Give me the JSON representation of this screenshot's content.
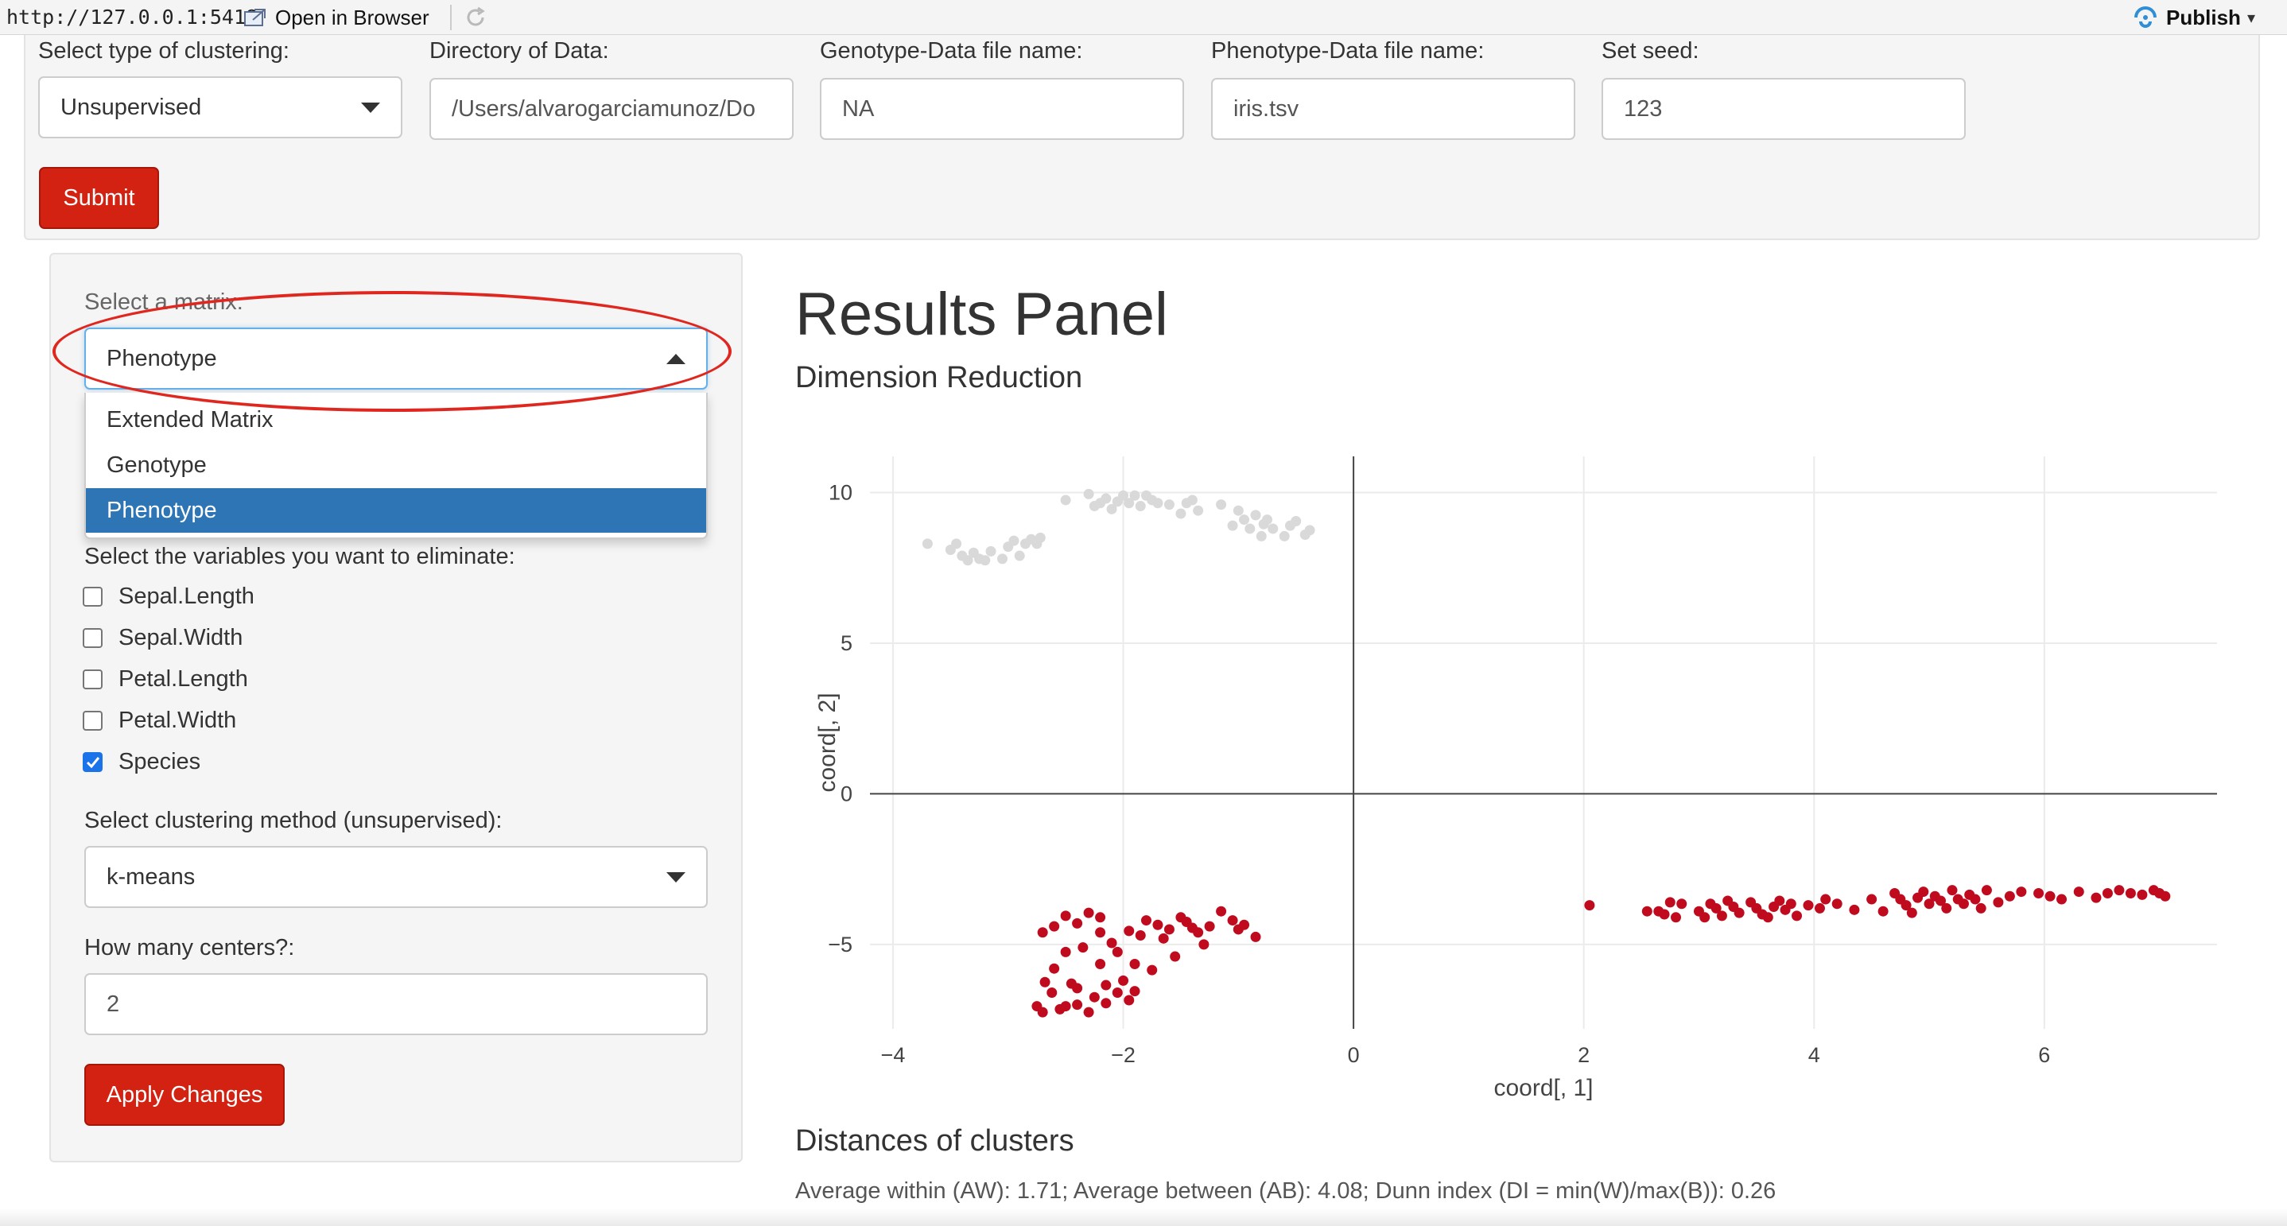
{
  "browser": {
    "url": "http://127.0.0.1:5418",
    "open_in_browser": "Open in Browser",
    "publish": "Publish"
  },
  "top_panel": {
    "clustering_type": {
      "label": "Select type of clustering:",
      "value": "Unsupervised"
    },
    "directory": {
      "label": "Directory of Data:",
      "value": "/Users/alvarogarciamunoz/Do"
    },
    "genotype_file": {
      "label": "Genotype-Data file name:",
      "value": "NA"
    },
    "phenotype_file": {
      "label": "Phenotype-Data file name:",
      "value": "iris.tsv"
    },
    "seed": {
      "label": "Set seed:",
      "value": "123"
    },
    "submit_label": "Submit"
  },
  "sidebar": {
    "matrix_label": "Select a matrix:",
    "matrix_value": "Phenotype",
    "matrix_options": [
      {
        "label": "Extended Matrix",
        "selected": false
      },
      {
        "label": "Genotype",
        "selected": false
      },
      {
        "label": "Phenotype",
        "selected": true
      }
    ],
    "eliminate_label": "Select the variables you want to eliminate:",
    "variables": [
      {
        "label": "Sepal.Length",
        "checked": false
      },
      {
        "label": "Sepal.Width",
        "checked": false
      },
      {
        "label": "Petal.Length",
        "checked": false
      },
      {
        "label": "Petal.Width",
        "checked": false
      },
      {
        "label": "Species",
        "checked": true
      }
    ],
    "method_label": "Select clustering method (unsupervised):",
    "method_value": "k-means",
    "centers_label": "How many centers?:",
    "centers_value": "2",
    "apply_label": "Apply Changes"
  },
  "results": {
    "title": "Results Panel",
    "dimension_reduction": "Dimension Reduction",
    "distances_title": "Distances of clusters",
    "distances_text": "Average within (AW): 1.71; Average between (AB): 4.08; Dunn index (DI = min(W)/max(B)): 0.26"
  },
  "colors": {
    "accent_red": "#d32211",
    "cluster_red": "#c00a1e",
    "cluster_gray": "#d9d9d9",
    "selected_blue": "#2e75b6",
    "annotation_red": "#e0271f"
  },
  "chart_data": {
    "type": "scatter",
    "title": "",
    "xlabel": "coord[, 1]",
    "ylabel": "coord[, 2]",
    "xlim": [
      -4.2,
      7.5
    ],
    "ylim": [
      -7.8,
      11.2
    ],
    "x_ticks": [
      -4,
      -2,
      0,
      2,
      4,
      6
    ],
    "y_ticks": [
      -5,
      0,
      5,
      10
    ],
    "x_tick_labels": [
      "−4",
      "−2",
      "0",
      "2",
      "4",
      "6"
    ],
    "y_tick_labels": [
      "−5",
      "0",
      "5",
      "10"
    ],
    "grid": true,
    "zero_lines": true,
    "series": [
      {
        "color": "#d9d9d9",
        "points": [
          [
            -3.7,
            8.3
          ],
          [
            -3.5,
            8.1
          ],
          [
            -3.45,
            8.3
          ],
          [
            -3.4,
            7.9
          ],
          [
            -3.35,
            7.75
          ],
          [
            -3.3,
            8.0
          ],
          [
            -3.25,
            7.8
          ],
          [
            -3.2,
            7.75
          ],
          [
            -3.15,
            8.05
          ],
          [
            -3.05,
            7.8
          ],
          [
            -3.0,
            8.2
          ],
          [
            -2.95,
            8.4
          ],
          [
            -2.9,
            7.9
          ],
          [
            -2.85,
            8.3
          ],
          [
            -2.8,
            8.45
          ],
          [
            -2.75,
            8.3
          ],
          [
            -2.72,
            8.5
          ],
          [
            -2.5,
            9.75
          ],
          [
            -2.3,
            9.95
          ],
          [
            -2.25,
            9.55
          ],
          [
            -2.2,
            9.65
          ],
          [
            -2.15,
            9.8
          ],
          [
            -2.1,
            9.45
          ],
          [
            -2.05,
            9.7
          ],
          [
            -2.0,
            9.9
          ],
          [
            -1.95,
            9.65
          ],
          [
            -1.9,
            9.9
          ],
          [
            -1.85,
            9.55
          ],
          [
            -1.8,
            9.9
          ],
          [
            -1.75,
            9.75
          ],
          [
            -1.7,
            9.65
          ],
          [
            -1.6,
            9.6
          ],
          [
            -1.5,
            9.3
          ],
          [
            -1.45,
            9.65
          ],
          [
            -1.4,
            9.75
          ],
          [
            -1.35,
            9.4
          ],
          [
            -1.15,
            9.6
          ],
          [
            -1.05,
            8.9
          ],
          [
            -1.0,
            9.4
          ],
          [
            -0.95,
            9.1
          ],
          [
            -0.9,
            8.8
          ],
          [
            -0.85,
            9.25
          ],
          [
            -0.8,
            8.55
          ],
          [
            -0.78,
            8.95
          ],
          [
            -0.75,
            9.1
          ],
          [
            -0.7,
            8.8
          ],
          [
            -0.6,
            8.55
          ],
          [
            -0.55,
            8.9
          ],
          [
            -0.5,
            9.05
          ],
          [
            -0.42,
            8.6
          ],
          [
            -0.38,
            8.75
          ]
        ]
      },
      {
        "color": "#c00a1e",
        "points": [
          [
            -2.75,
            -7.05
          ],
          [
            -2.7,
            -7.25
          ],
          [
            -2.68,
            -6.25
          ],
          [
            -2.62,
            -6.6
          ],
          [
            -2.6,
            -5.8
          ],
          [
            -2.55,
            -7.15
          ],
          [
            -2.5,
            -5.25
          ],
          [
            -2.5,
            -7.05
          ],
          [
            -2.45,
            -6.3
          ],
          [
            -2.4,
            -6.45
          ],
          [
            -2.4,
            -7.0
          ],
          [
            -2.35,
            -5.1
          ],
          [
            -2.3,
            -7.25
          ],
          [
            -2.25,
            -6.75
          ],
          [
            -2.2,
            -4.6
          ],
          [
            -2.2,
            -5.65
          ],
          [
            -2.15,
            -6.35
          ],
          [
            -2.15,
            -6.95
          ],
          [
            -2.1,
            -4.95
          ],
          [
            -2.05,
            -5.25
          ],
          [
            -2.05,
            -6.6
          ],
          [
            -2.0,
            -6.2
          ],
          [
            -1.95,
            -4.55
          ],
          [
            -1.95,
            -6.85
          ],
          [
            -1.9,
            -5.65
          ],
          [
            -1.85,
            -4.7
          ],
          [
            -1.9,
            -6.55
          ],
          [
            -1.8,
            -4.2
          ],
          [
            -1.75,
            -5.85
          ],
          [
            -1.7,
            -4.35
          ],
          [
            -1.65,
            -4.8
          ],
          [
            -1.6,
            -4.5
          ],
          [
            -1.55,
            -5.4
          ],
          [
            -1.5,
            -4.1
          ],
          [
            -1.45,
            -4.25
          ],
          [
            -1.4,
            -4.45
          ],
          [
            -1.35,
            -4.6
          ],
          [
            -2.7,
            -4.6
          ],
          [
            -2.6,
            -4.4
          ],
          [
            -2.5,
            -4.05
          ],
          [
            -2.4,
            -4.3
          ],
          [
            -2.3,
            -3.95
          ],
          [
            -2.2,
            -4.1
          ],
          [
            -1.25,
            -4.4
          ],
          [
            -1.15,
            -3.9
          ],
          [
            -1.05,
            -4.2
          ],
          [
            -1.0,
            -4.5
          ],
          [
            -0.95,
            -4.35
          ],
          [
            -0.85,
            -4.75
          ],
          [
            -1.3,
            -5.0
          ],
          [
            2.05,
            -3.7
          ],
          [
            2.55,
            -3.9
          ],
          [
            2.65,
            -3.9
          ],
          [
            2.7,
            -4.0
          ],
          [
            2.75,
            -3.6
          ],
          [
            2.8,
            -4.1
          ],
          [
            2.85,
            -3.65
          ],
          [
            3.0,
            -3.9
          ],
          [
            3.05,
            -4.1
          ],
          [
            3.1,
            -3.65
          ],
          [
            3.15,
            -3.8
          ],
          [
            3.2,
            -4.05
          ],
          [
            3.25,
            -3.55
          ],
          [
            3.3,
            -3.75
          ],
          [
            3.35,
            -3.95
          ],
          [
            3.45,
            -3.6
          ],
          [
            3.5,
            -3.8
          ],
          [
            3.55,
            -4.0
          ],
          [
            3.6,
            -4.1
          ],
          [
            3.65,
            -3.75
          ],
          [
            3.7,
            -3.55
          ],
          [
            3.75,
            -3.85
          ],
          [
            3.8,
            -3.65
          ],
          [
            3.85,
            -4.05
          ],
          [
            3.95,
            -3.7
          ],
          [
            4.05,
            -3.8
          ],
          [
            4.1,
            -3.5
          ],
          [
            4.2,
            -3.65
          ],
          [
            4.35,
            -3.85
          ],
          [
            4.5,
            -3.5
          ],
          [
            4.6,
            -3.9
          ],
          [
            4.7,
            -3.3
          ],
          [
            4.75,
            -3.5
          ],
          [
            4.8,
            -3.7
          ],
          [
            4.85,
            -3.95
          ],
          [
            4.9,
            -3.45
          ],
          [
            4.95,
            -3.25
          ],
          [
            5.0,
            -3.65
          ],
          [
            5.05,
            -3.4
          ],
          [
            5.1,
            -3.55
          ],
          [
            5.15,
            -3.8
          ],
          [
            5.2,
            -3.2
          ],
          [
            5.25,
            -3.5
          ],
          [
            5.3,
            -3.65
          ],
          [
            5.35,
            -3.35
          ],
          [
            5.4,
            -3.5
          ],
          [
            5.45,
            -3.8
          ],
          [
            5.5,
            -3.2
          ],
          [
            5.6,
            -3.6
          ],
          [
            5.7,
            -3.4
          ],
          [
            5.8,
            -3.25
          ],
          [
            5.95,
            -3.3
          ],
          [
            6.05,
            -3.4
          ],
          [
            6.15,
            -3.5
          ],
          [
            6.3,
            -3.25
          ],
          [
            6.45,
            -3.45
          ],
          [
            6.55,
            -3.3
          ],
          [
            6.65,
            -3.2
          ],
          [
            6.75,
            -3.3
          ],
          [
            6.85,
            -3.35
          ],
          [
            6.95,
            -3.2
          ],
          [
            7.0,
            -3.3
          ],
          [
            7.05,
            -3.4
          ]
        ]
      }
    ]
  }
}
